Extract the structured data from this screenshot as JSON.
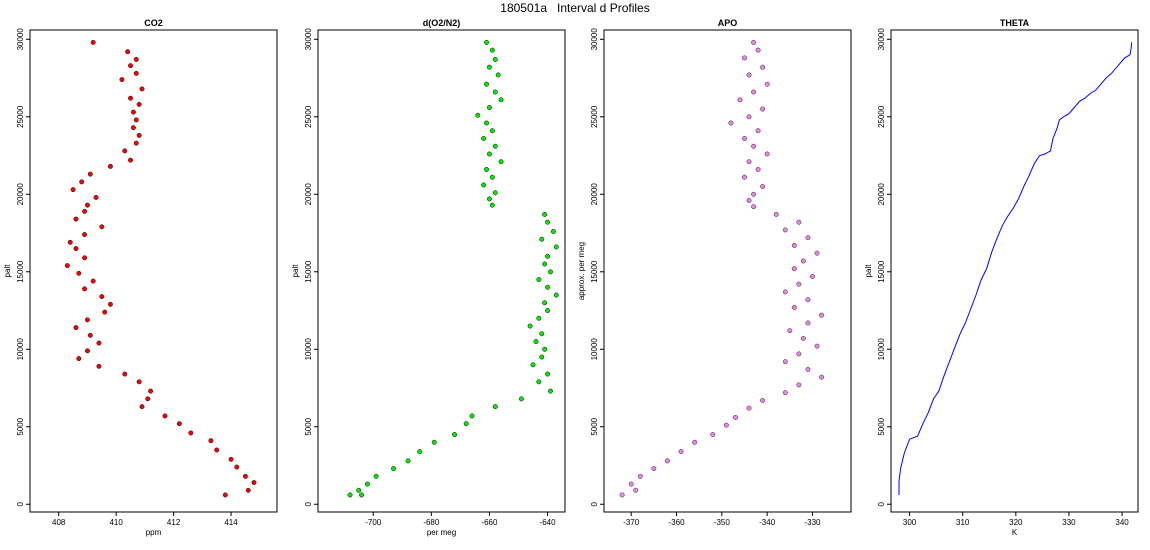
{
  "figure_title": "180501a   Interval d Profiles",
  "chart_data": [
    {
      "type": "scatter",
      "title": "CO2",
      "xlabel": "ppm",
      "ylabel": "palt",
      "xlim": [
        407,
        415.6
      ],
      "ylim": [
        -500,
        30600
      ],
      "xticks": [
        408,
        410,
        412,
        414
      ],
      "yticks": [
        0,
        5000,
        10000,
        15000,
        20000,
        25000,
        30000
      ],
      "color": "#ff0000",
      "outline": "#000000",
      "series": [
        {
          "x": [
            409.2,
            410.4,
            410.7,
            410.5,
            410.7,
            410.2,
            410.9,
            410.5,
            410.8,
            410.6,
            410.7,
            410.6,
            410.8,
            410.7,
            410.3,
            410.5,
            409.8,
            409.1,
            408.8,
            408.5,
            409.3,
            409.0,
            408.9,
            408.6,
            409.5,
            408.9,
            408.4,
            408.6,
            408.9,
            408.3,
            408.7,
            409.2,
            408.9,
            409.5,
            409.8,
            409.6,
            409.0,
            408.6,
            409.1,
            409.4,
            409.0,
            408.7,
            409.4,
            410.3,
            410.8,
            411.2,
            411.1,
            410.9,
            411.7,
            412.2,
            412.6,
            413.3,
            413.5,
            414.0,
            414.2,
            414.5,
            414.8,
            414.6,
            413.8
          ],
          "y": [
            29800,
            29200,
            28700,
            28300,
            27800,
            27400,
            26800,
            26200,
            25800,
            25300,
            24800,
            24300,
            23800,
            23300,
            22800,
            22200,
            21800,
            21300,
            20800,
            20300,
            19800,
            19300,
            18900,
            18400,
            17900,
            17400,
            16900,
            16500,
            15900,
            15400,
            14900,
            14400,
            13900,
            13400,
            12900,
            12400,
            11900,
            11400,
            10900,
            10400,
            9900,
            9400,
            8900,
            8400,
            7900,
            7300,
            6800,
            6300,
            5700,
            5200,
            4600,
            4100,
            3500,
            2900,
            2400,
            1800,
            1400,
            900,
            600
          ]
        }
      ]
    },
    {
      "type": "scatter",
      "title": "d(O2/N2)",
      "xlabel": "per meg",
      "ylabel": "palt",
      "xlim": [
        -719,
        -634
      ],
      "ylim": [
        -500,
        30600
      ],
      "xticks": [
        -700,
        -680,
        -660,
        -640
      ],
      "yticks": [
        0,
        5000,
        10000,
        15000,
        20000,
        25000,
        30000
      ],
      "color": "#00ee00",
      "outline": "#000000",
      "series": [
        {
          "x": [
            -661,
            -659,
            -658,
            -660,
            -657,
            -661,
            -658,
            -656,
            -660,
            -664,
            -661,
            -659,
            -662,
            -658,
            -660,
            -656,
            -661,
            -659,
            -662,
            -658,
            -660,
            -659,
            -641,
            -640,
            -638,
            -642,
            -637,
            -640,
            -641,
            -639,
            -643,
            -640,
            -637,
            -641,
            -640,
            -643,
            -646,
            -642,
            -644,
            -641,
            -642,
            -645,
            -640,
            -643,
            -639,
            -649,
            -658,
            -666,
            -668,
            -672,
            -679,
            -684,
            -688,
            -693,
            -699,
            -702,
            -705,
            -704,
            -708
          ],
          "y": [
            29800,
            29300,
            28700,
            28200,
            27700,
            27100,
            26600,
            26100,
            25600,
            25100,
            24600,
            24100,
            23600,
            23100,
            22600,
            22100,
            21600,
            21100,
            20600,
            20100,
            19700,
            19300,
            18700,
            18200,
            17600,
            17100,
            16600,
            16000,
            15500,
            15000,
            14500,
            14000,
            13500,
            13000,
            12500,
            12000,
            11500,
            11000,
            10500,
            10000,
            9500,
            9000,
            8400,
            7900,
            7300,
            6800,
            6300,
            5700,
            5200,
            4500,
            4000,
            3400,
            2800,
            2300,
            1800,
            1300,
            900,
            600,
            600
          ]
        }
      ]
    },
    {
      "type": "scatter",
      "title": "APO",
      "xlabel": "",
      "ylabel": "approx. per meg",
      "xlim": [
        -376,
        -321.5
      ],
      "ylim": [
        -500,
        30600
      ],
      "xticks": [
        -370,
        -360,
        -350,
        -340,
        -330
      ],
      "yticks": [
        0,
        5000,
        10000,
        15000,
        20000,
        25000,
        30000
      ],
      "color": "#ee82ee",
      "outline": "#222222",
      "series": [
        {
          "x": [
            -343,
            -342,
            -345,
            -341,
            -344,
            -340,
            -343,
            -346,
            -341,
            -344,
            -348,
            -342,
            -345,
            -343,
            -340,
            -344,
            -342,
            -345,
            -341,
            -343,
            -344,
            -343,
            -338,
            -333,
            -336,
            -331,
            -334,
            -329,
            -332,
            -334,
            -330,
            -333,
            -336,
            -331,
            -334,
            -328,
            -331,
            -335,
            -332,
            -329,
            -333,
            -336,
            -331,
            -328,
            -333,
            -336,
            -341,
            -344,
            -347,
            -349,
            -352,
            -356,
            -359,
            -362,
            -365,
            -368,
            -370,
            -369,
            -372
          ],
          "y": [
            29800,
            29300,
            28800,
            28200,
            27700,
            27100,
            26600,
            26100,
            25500,
            25000,
            24600,
            24100,
            23600,
            23100,
            22600,
            22100,
            21600,
            21100,
            20500,
            20000,
            19600,
            19200,
            18700,
            18200,
            17700,
            17200,
            16700,
            16200,
            15700,
            15200,
            14700,
            14200,
            13700,
            13200,
            12700,
            12200,
            11700,
            11200,
            10700,
            10200,
            9700,
            9200,
            8700,
            8200,
            7700,
            7200,
            6700,
            6200,
            5600,
            5100,
            4500,
            4000,
            3400,
            2800,
            2300,
            1800,
            1300,
            900,
            600
          ]
        }
      ]
    },
    {
      "type": "line",
      "title": "THETA",
      "xlabel": "K",
      "ylabel": "palt",
      "xlim": [
        296.5,
        343
      ],
      "ylim": [
        -500,
        30600
      ],
      "xticks": [
        300,
        310,
        320,
        330,
        340
      ],
      "yticks": [
        0,
        5000,
        10000,
        15000,
        20000,
        25000,
        30000
      ],
      "color": "#0000ff",
      "series": [
        {
          "x": [
            298.0,
            298.0,
            298.3,
            299.0,
            300.0,
            301.5,
            302.5,
            303.5,
            304.5,
            305.5,
            306.5,
            307.5,
            308.5,
            309.5,
            310.5,
            311.5,
            312.5,
            313.5,
            314.5,
            315.5,
            316.5,
            317.5,
            318.5,
            319.5,
            320.5,
            321.5,
            322.5,
            323.5,
            324.5,
            325.5,
            326.5,
            327.0,
            327.8,
            328.2,
            329.0,
            330.0,
            331.0,
            332.0,
            333.0,
            334.0,
            335.0,
            336.0,
            337.0,
            338.0,
            339.5,
            340.5,
            341.5,
            341.7,
            341.8,
            341.8
          ],
          "y": [
            600,
            1500,
            2300,
            3300,
            4200,
            4400,
            5200,
            5900,
            6800,
            7300,
            8300,
            9200,
            10100,
            11000,
            11700,
            12600,
            13500,
            14500,
            15200,
            16300,
            17200,
            18000,
            18600,
            19100,
            19700,
            20500,
            21200,
            22000,
            22500,
            22600,
            22800,
            23600,
            24300,
            24800,
            25000,
            25200,
            25600,
            26000,
            26200,
            26500,
            26700,
            27100,
            27500,
            27800,
            28400,
            28800,
            29000,
            29400,
            29700,
            29800
          ]
        }
      ]
    }
  ]
}
